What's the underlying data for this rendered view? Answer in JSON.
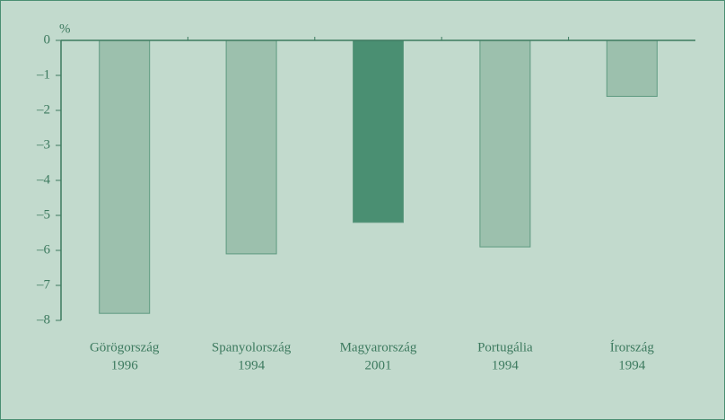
{
  "chart_data": {
    "type": "bar",
    "ylabel": "%",
    "categories": [
      [
        "Görögország",
        "1996"
      ],
      [
        "Spanyolország",
        "1994"
      ],
      [
        "Magyarország",
        "2001"
      ],
      [
        "Portugália",
        "1994"
      ],
      [
        "Írország",
        "1994"
      ]
    ],
    "values": [
      -7.8,
      -6.1,
      -5.2,
      -5.9,
      -1.6
    ],
    "colors": [
      "#9cc0ad",
      "#9cc0ad",
      "#4a8f72",
      "#9cc0ad",
      "#9cc0ad"
    ],
    "ylim": [
      -8,
      0
    ],
    "yticks": [
      0,
      {
        "value": -1,
        "label": "–1"
      },
      {
        "value": -2,
        "label": "–2"
      },
      {
        "value": -3,
        "label": "–3"
      },
      {
        "value": -4,
        "label": "–4"
      },
      {
        "value": -5,
        "label": "–5"
      },
      {
        "value": -6,
        "label": "–6"
      },
      {
        "value": -7,
        "label": "–7"
      },
      {
        "value": -8,
        "label": "–8"
      }
    ],
    "grid": false
  }
}
